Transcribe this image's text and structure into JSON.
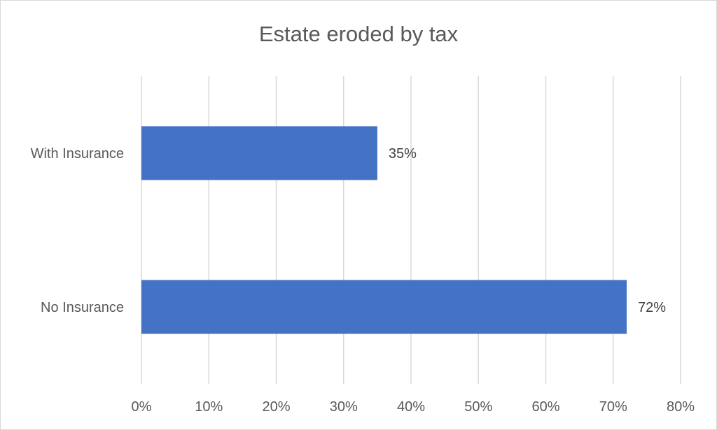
{
  "chart_data": {
    "type": "bar",
    "orientation": "horizontal",
    "title": "Estate eroded by tax",
    "categories": [
      "With Insurance",
      "No Insurance"
    ],
    "values": [
      0.35,
      0.72
    ],
    "data_labels": [
      "35%",
      "72%"
    ],
    "xlim": [
      0,
      0.8
    ],
    "x_ticks": [
      0,
      0.1,
      0.2,
      0.3,
      0.4,
      0.5,
      0.6,
      0.7,
      0.8
    ],
    "x_tick_labels": [
      "0%",
      "10%",
      "20%",
      "30%",
      "40%",
      "50%",
      "60%",
      "70%",
      "80%"
    ],
    "grid": "vertical",
    "legend": "none",
    "colors": {
      "bar": "#4472c4",
      "grid": "#d9d9d9",
      "text": "#595959",
      "data_label": "#404040",
      "border": "#d9d9d9"
    }
  }
}
